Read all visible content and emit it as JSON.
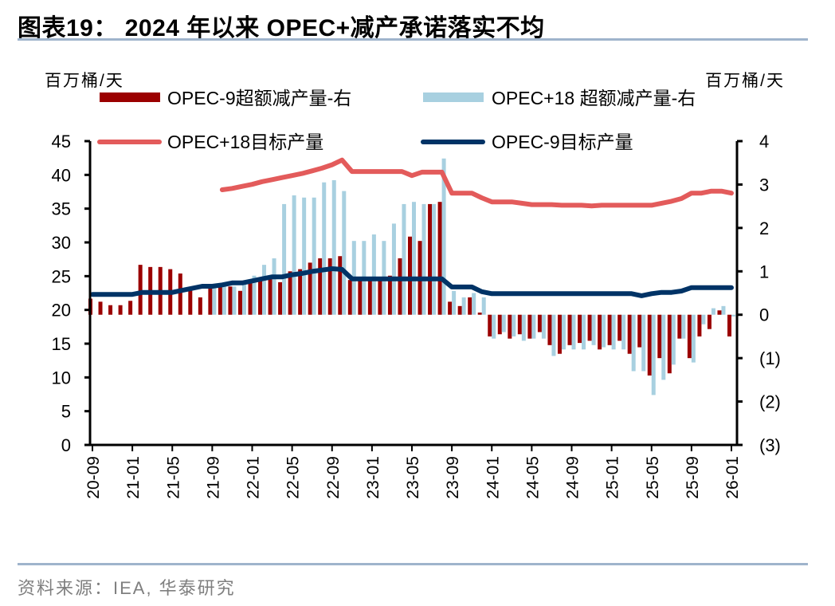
{
  "header": {
    "title": "图表19： 2024 年以来 OPEC+减产承诺落实不均"
  },
  "footer": {
    "source": "资料来源：IEA, 华泰研究"
  },
  "chart_data": {
    "type": "bar+line",
    "title": "图表19： 2024 年以来 OPEC+减产承诺落实不均",
    "left_axis_label": "百万桶/天",
    "right_axis_label": "百万桶/天",
    "left_ylim": [
      0,
      45
    ],
    "right_ylim": [
      -3,
      4
    ],
    "left_ticks": [
      "0",
      "5",
      "10",
      "15",
      "20",
      "25",
      "30",
      "35",
      "40",
      "45"
    ],
    "right_ticks": [
      "(3)",
      "(2)",
      "(1)",
      "0",
      "1",
      "2",
      "3",
      "4"
    ],
    "right_tick_values": [
      -3,
      -2,
      -1,
      0,
      1,
      2,
      3,
      4
    ],
    "x_tick_labels": [
      "20-09",
      "21-01",
      "21-05",
      "21-09",
      "22-01",
      "22-05",
      "22-09",
      "23-01",
      "23-05",
      "23-09",
      "24-01",
      "24-05",
      "24-09",
      "25-01",
      "25-05",
      "25-09",
      "26-01"
    ],
    "x_start": "2020-09",
    "months_count": 65,
    "legend": [
      {
        "name": "OPEC-9超额减产量-右",
        "kind": "bar",
        "color": "#9b0000"
      },
      {
        "name": "OPEC+18 超额减产量-右",
        "kind": "bar",
        "color": "#a8d0e0"
      },
      {
        "name": "OPEC+18目标产量",
        "kind": "line",
        "color": "#e35b5b"
      },
      {
        "name": "OPEC-9目标产量",
        "kind": "line",
        "color": "#003366"
      }
    ],
    "series": [
      {
        "name": "OPEC-9超额减产量-右",
        "axis": "right",
        "type": "bar",
        "values": [
          0.37,
          0.3,
          0.22,
          0.22,
          0.32,
          1.15,
          1.1,
          1.1,
          1.05,
          0.95,
          0.6,
          0.4,
          0.7,
          0.65,
          0.65,
          0.55,
          0.75,
          0.85,
          0.9,
          0.75,
          1.0,
          1.05,
          1.2,
          1.3,
          1.3,
          1.35,
          0.8,
          0.85,
          0.85,
          0.8,
          0.9,
          1.3,
          1.8,
          1.7,
          2.55,
          2.6,
          0.3,
          0.2,
          0.4,
          0.05,
          -0.5,
          -0.45,
          -0.55,
          -0.45,
          -0.55,
          -0.4,
          -0.7,
          -0.9,
          -0.7,
          -0.65,
          -0.6,
          -0.8,
          -0.7,
          -0.6,
          -0.9,
          -0.75,
          -1.4,
          -1.0,
          -1.35,
          -0.55,
          -1.0,
          -0.5,
          -0.33,
          0.1,
          -0.5
        ]
      },
      {
        "name": "OPEC+18 超额减产量-右",
        "axis": "right",
        "type": "bar",
        "values": [
          null,
          null,
          null,
          null,
          null,
          null,
          null,
          null,
          null,
          null,
          null,
          null,
          0.65,
          0.65,
          0.65,
          0.75,
          0.9,
          1.15,
          1.3,
          2.55,
          2.75,
          2.7,
          2.7,
          3.05,
          3.1,
          2.85,
          1.7,
          1.7,
          1.85,
          1.7,
          2.1,
          2.55,
          2.6,
          2.55,
          2.55,
          3.6,
          0.55,
          0.4,
          0.5,
          0.4,
          -0.55,
          -0.4,
          -0.5,
          -0.6,
          -0.55,
          -0.55,
          -0.95,
          -0.8,
          -0.8,
          -0.8,
          -0.7,
          -0.75,
          -0.8,
          -0.8,
          -1.3,
          -1.3,
          -1.85,
          -1.5,
          -1.15,
          -0.55,
          -1.1,
          -0.22,
          0.15,
          0.2,
          -0.04
        ]
      },
      {
        "name": "OPEC+18目标产量",
        "axis": "left",
        "type": "line",
        "values": [
          null,
          null,
          null,
          null,
          null,
          null,
          null,
          null,
          null,
          null,
          null,
          null,
          null,
          37.8,
          38.0,
          38.3,
          38.6,
          39.0,
          39.3,
          39.6,
          39.9,
          40.2,
          40.6,
          41.0,
          41.5,
          42.2,
          40.5,
          40.5,
          40.5,
          40.5,
          40.5,
          40.5,
          39.9,
          40.4,
          40.4,
          40.4,
          37.3,
          37.3,
          37.3,
          36.6,
          36.0,
          36.0,
          36.0,
          35.8,
          35.6,
          35.6,
          35.6,
          35.5,
          35.5,
          35.5,
          35.4,
          35.5,
          35.5,
          35.5,
          35.5,
          35.5,
          35.5,
          35.8,
          36.1,
          36.5,
          37.3,
          37.3,
          37.6,
          37.6,
          37.3
        ]
      },
      {
        "name": "OPEC-9目标产量",
        "axis": "left",
        "type": "line",
        "values": [
          22.3,
          22.3,
          22.3,
          22.3,
          22.3,
          22.6,
          22.6,
          22.6,
          22.6,
          22.9,
          23.2,
          23.5,
          23.5,
          23.7,
          24.0,
          24.0,
          24.3,
          24.6,
          24.9,
          24.9,
          25.2,
          25.4,
          25.7,
          25.9,
          26.1,
          26.0,
          24.6,
          24.6,
          24.6,
          24.6,
          24.6,
          24.6,
          24.6,
          24.6,
          24.6,
          24.6,
          23.4,
          23.4,
          23.4,
          22.7,
          22.4,
          22.4,
          22.4,
          22.4,
          22.4,
          22.4,
          22.4,
          22.4,
          22.4,
          22.4,
          22.4,
          22.4,
          22.4,
          22.4,
          22.4,
          22.1,
          22.4,
          22.6,
          22.6,
          22.8,
          23.3,
          23.3,
          23.3,
          23.3,
          23.3
        ]
      }
    ]
  }
}
